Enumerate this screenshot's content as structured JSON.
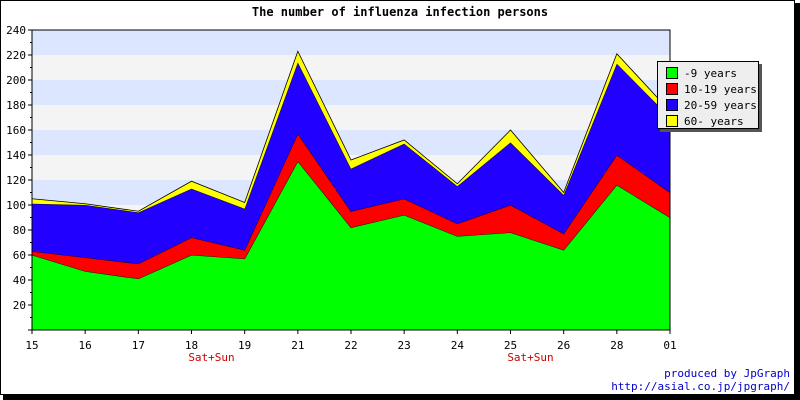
{
  "chart_data": {
    "type": "area",
    "stacked": true,
    "title": "The number of influenza infection persons",
    "categories": [
      "15",
      "16",
      "17",
      "18",
      "19",
      "21",
      "22",
      "23",
      "24",
      "25",
      "26",
      "28",
      "01"
    ],
    "sublabels": [
      "",
      "",
      "",
      "Sat+Sun",
      "",
      "",
      "",
      "",
      "",
      "Sat+Sun",
      "",
      "",
      ""
    ],
    "ylim": [
      0,
      240
    ],
    "yticks": [
      20,
      40,
      60,
      80,
      100,
      120,
      140,
      160,
      180,
      200,
      220,
      240
    ],
    "grid": true,
    "legend_position": "top-right",
    "series": [
      {
        "name": "-9 years",
        "color": "#00ff00",
        "values": [
          60,
          47,
          41,
          60,
          57,
          135,
          82,
          92,
          75,
          78,
          64,
          116,
          90
        ]
      },
      {
        "name": "10-19 years",
        "color": "#ff0000",
        "values": [
          3,
          11,
          12,
          14,
          7,
          22,
          13,
          13,
          10,
          22,
          13,
          24,
          20
        ]
      },
      {
        "name": "20-59 years",
        "color": "#2200ff",
        "values": [
          38,
          42,
          41,
          39,
          33,
          57,
          34,
          44,
          30,
          50,
          31,
          73,
          60
        ]
      },
      {
        "name": "60- years",
        "color": "#ffff00",
        "values": [
          4,
          1,
          1,
          6,
          5,
          9,
          7,
          3,
          2,
          10,
          2,
          8,
          5
        ]
      }
    ]
  },
  "credit": {
    "line1": "produced by JpGraph",
    "line2": "http://asial.co.jp/jpgraph/"
  }
}
